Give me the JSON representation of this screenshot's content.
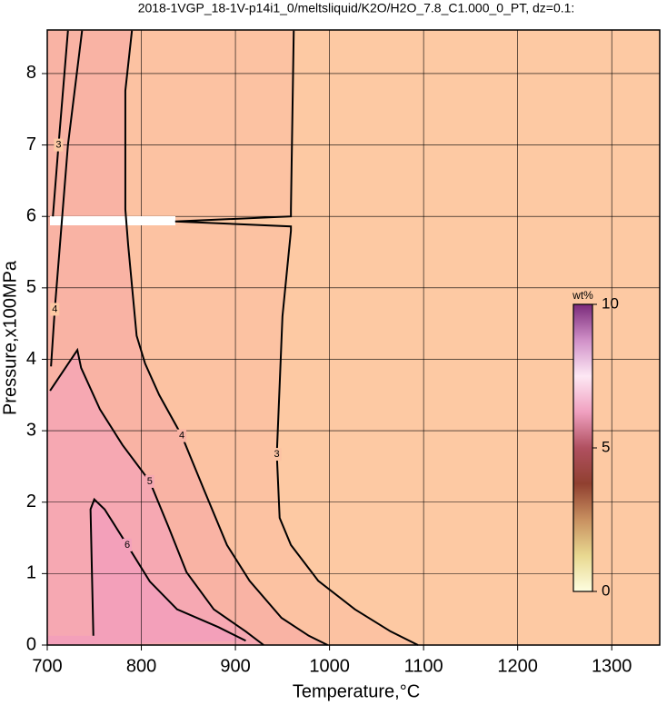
{
  "chart_data": {
    "type": "contour",
    "title": "2018-1VGP_18-1V-p14i1_0/meltsliquid/K2O/H2O_7.8_C1.000_0_PT, dz=0.1:",
    "x_label": "Temperature,°C",
    "y_label": "Pressure,x100MPa",
    "background": "#fdc9a3",
    "xlim": [
      700,
      1351
    ],
    "ylim": [
      0,
      8.61
    ],
    "xticks": [
      700,
      800,
      900,
      1000,
      1100,
      1200,
      1300
    ],
    "yticks": [
      0,
      1,
      2,
      3,
      4,
      5,
      6,
      7,
      8
    ],
    "grid": true,
    "series": [
      {
        "name": "3",
        "color": "#fcc2a2",
        "x": [
          962,
          959,
          959,
          836,
          959,
          959,
          950,
          944,
          947,
          959,
          988,
          1027,
          1065,
          1094
        ],
        "values": [
          8.6,
          6.1,
          6.0,
          5.93,
          5.86,
          5.8,
          4.6,
          2.67,
          1.78,
          1.4,
          0.9,
          0.5,
          0.19,
          0
        ]
      },
      {
        "name": "4",
        "color": "#f9b3a4",
        "x": [
          790,
          783,
          783,
          786,
          795,
          804,
          819,
          843,
          867,
          891,
          915,
          949,
          978,
          998
        ],
        "values": [
          8.6,
          7.76,
          6.1,
          5.6,
          4.33,
          3.94,
          3.5,
          2.93,
          2.16,
          1.4,
          0.9,
          0.38,
          0.13,
          0
        ]
      },
      {
        "name": "5",
        "color": "#f6a8b2",
        "x": [
          703,
          732,
          736,
          756,
          780,
          809,
          829,
          848,
          877,
          911,
          930
        ],
        "values": [
          3.56,
          4.13,
          3.88,
          3.3,
          2.8,
          2.29,
          1.65,
          1.02,
          0.5,
          0.19,
          0
        ]
      },
      {
        "name": "6",
        "color": "#f3a0ba",
        "x": [
          749,
          746,
          750,
          761,
          785,
          809,
          838,
          882,
          911
        ],
        "values": [
          0.13,
          1.9,
          2.04,
          1.9,
          1.4,
          0.89,
          0.5,
          0.25,
          0.06
        ]
      },
      {
        "name": "4",
        "x": [
          737,
          722,
          708,
          704
        ],
        "values": [
          8.6,
          7,
          4.7,
          3.9
        ]
      },
      {
        "name": "3",
        "x": [
          722,
          712,
          706
        ],
        "values": [
          8.6,
          7,
          6.0
        ]
      }
    ],
    "colorbar": {
      "label": "wt%",
      "lim": [
        0,
        10
      ],
      "ticks": [
        0,
        5,
        10
      ],
      "colors": [
        "#fefee0",
        "#e8d890",
        "#c89060",
        "#904030",
        "#b05060",
        "#f0a0c0",
        "#fde8f4",
        "#d090c8",
        "#7a2a7a"
      ]
    }
  }
}
